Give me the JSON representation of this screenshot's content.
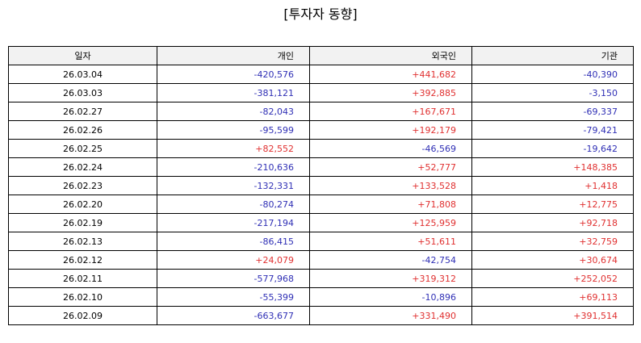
{
  "title": "[투자자 동향]",
  "colors": {
    "positive": "#e03030",
    "negative": "#2f2fb5",
    "header_background": "#f2f2f2",
    "border": "#000000"
  },
  "chart_data": {
    "type": "table",
    "title": "[투자자 동향]",
    "columns": [
      "일자",
      "개인",
      "외국인",
      "기관"
    ],
    "rows": [
      {
        "date": "26.03.04",
        "individual": "-420,576",
        "foreign": "+441,682",
        "institution": "-40,390"
      },
      {
        "date": "26.03.03",
        "individual": "-381,121",
        "foreign": "+392,885",
        "institution": "-3,150"
      },
      {
        "date": "26.02.27",
        "individual": "-82,043",
        "foreign": "+167,671",
        "institution": "-69,337"
      },
      {
        "date": "26.02.26",
        "individual": "-95,599",
        "foreign": "+192,179",
        "institution": "-79,421"
      },
      {
        "date": "26.02.25",
        "individual": "+82,552",
        "foreign": "-46,569",
        "institution": "-19,642"
      },
      {
        "date": "26.02.24",
        "individual": "-210,636",
        "foreign": "+52,777",
        "institution": "+148,385"
      },
      {
        "date": "26.02.23",
        "individual": "-132,331",
        "foreign": "+133,528",
        "institution": "+1,418"
      },
      {
        "date": "26.02.20",
        "individual": "-80,274",
        "foreign": "+71,808",
        "institution": "+12,775"
      },
      {
        "date": "26.02.19",
        "individual": "-217,194",
        "foreign": "+125,959",
        "institution": "+92,718"
      },
      {
        "date": "26.02.13",
        "individual": "-86,415",
        "foreign": "+51,611",
        "institution": "+32,759"
      },
      {
        "date": "26.02.12",
        "individual": "+24,079",
        "foreign": "-42,754",
        "institution": "+30,674"
      },
      {
        "date": "26.02.11",
        "individual": "-577,968",
        "foreign": "+319,312",
        "institution": "+252,052"
      },
      {
        "date": "26.02.10",
        "individual": "-55,399",
        "foreign": "-10,896",
        "institution": "+69,113"
      },
      {
        "date": "26.02.09",
        "individual": "-663,677",
        "foreign": "+331,490",
        "institution": "+391,514"
      }
    ]
  }
}
